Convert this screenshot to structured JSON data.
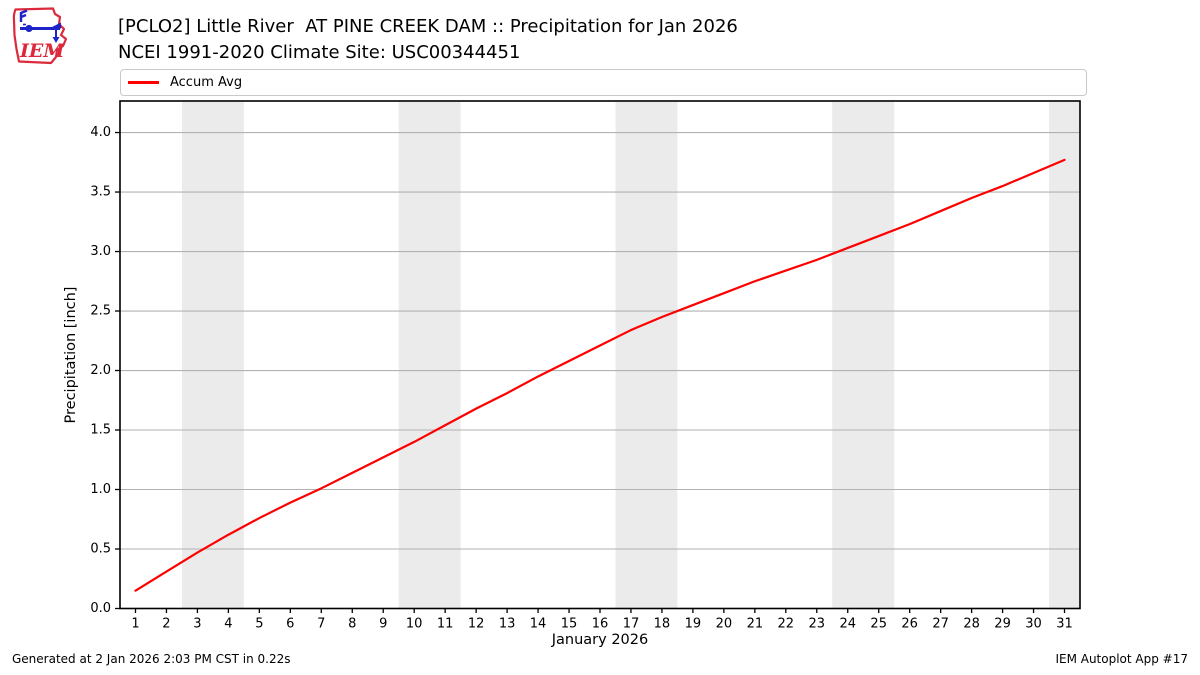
{
  "header": {
    "title_line1": "[PCLO2] Little River  AT PINE CREEK DAM :: Precipitation for Jan 2026",
    "title_line2": "NCEI 1991-2020 Climate Site: USC00344451",
    "logo_text": "IEM"
  },
  "legend": {
    "items": [
      {
        "label": "Accum Avg",
        "color": "#ff0000"
      }
    ]
  },
  "chart_data": {
    "type": "line",
    "title": "[PCLO2] Little River  AT PINE CREEK DAM :: Precipitation for Jan 2026",
    "subtitle": "NCEI 1991-2020 Climate Site: USC00344451",
    "xlabel": "January 2026",
    "ylabel": "Precipitation [inch]",
    "x": [
      1,
      2,
      3,
      4,
      5,
      6,
      7,
      8,
      9,
      10,
      11,
      12,
      13,
      14,
      15,
      16,
      17,
      18,
      19,
      20,
      21,
      22,
      23,
      24,
      25,
      26,
      27,
      28,
      29,
      30,
      31
    ],
    "series": [
      {
        "name": "Accum Avg",
        "color": "#ff0000",
        "values": [
          0.15,
          0.31,
          0.47,
          0.62,
          0.76,
          0.89,
          1.01,
          1.14,
          1.27,
          1.4,
          1.54,
          1.68,
          1.81,
          1.95,
          2.08,
          2.21,
          2.34,
          2.45,
          2.55,
          2.65,
          2.75,
          2.84,
          2.93,
          3.03,
          3.13,
          3.23,
          3.34,
          3.45,
          3.55,
          3.66,
          3.77
        ]
      }
    ],
    "xlim": [
      0.5,
      31.5
    ],
    "ylim": [
      0,
      4.265
    ],
    "xticks": [
      1,
      2,
      3,
      4,
      5,
      6,
      7,
      8,
      9,
      10,
      11,
      12,
      13,
      14,
      15,
      16,
      17,
      18,
      19,
      20,
      21,
      22,
      23,
      24,
      25,
      26,
      27,
      28,
      29,
      30,
      31
    ],
    "yticks": [
      0.0,
      0.5,
      1.0,
      1.5,
      2.0,
      2.5,
      3.0,
      3.5,
      4.0
    ],
    "grid": "horizontal",
    "legend_position": "top",
    "weekend_bands": [
      [
        2.5,
        4.5
      ],
      [
        9.5,
        11.5
      ],
      [
        16.5,
        18.5
      ],
      [
        23.5,
        25.5
      ],
      [
        30.5,
        31.5
      ]
    ],
    "band_color": "#ebebeb",
    "grid_color": "#b2b2b2",
    "spine_color": "#000000"
  },
  "footer": {
    "left": "Generated at 2 Jan 2026 2:03 PM CST in 0.22s",
    "right": "IEM Autoplot App #17"
  }
}
